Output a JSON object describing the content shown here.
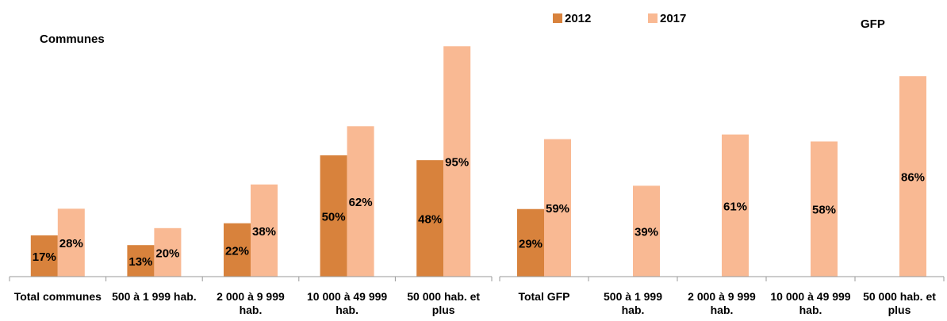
{
  "chart_data": [
    {
      "type": "bar",
      "title": "Communes",
      "categories": [
        "Total communes",
        "500 à 1 999 hab.",
        "2 000 à 9 999 hab.",
        "10 000 à 49 999 hab.",
        "50 000 hab. et plus"
      ],
      "series": [
        {
          "name": "2012",
          "color": "#d8823c",
          "values": [
            17,
            13,
            22,
            50,
            48
          ],
          "value_labels": [
            "17%",
            "13%",
            "22%",
            "50%",
            "48%"
          ]
        },
        {
          "name": "2017",
          "color": "#f9b993",
          "values": [
            28,
            20,
            38,
            62,
            95
          ],
          "value_labels": [
            "28%",
            "20%",
            "38%",
            "62%",
            "95%"
          ]
        }
      ],
      "ylim": [
        0,
        100
      ]
    },
    {
      "type": "bar",
      "title": "GFP",
      "categories": [
        "Total GFP",
        "500 à 1 999 hab.",
        "2 000 à 9 999 hab.",
        "10 000 à 49 999 hab.",
        "50 000 hab. et plus"
      ],
      "series": [
        {
          "name": "2012",
          "color": "#d8823c",
          "values": [
            29,
            null,
            null,
            null,
            null
          ],
          "value_labels": [
            "29%",
            null,
            null,
            null,
            null
          ]
        },
        {
          "name": "2017",
          "color": "#f9b993",
          "values": [
            59,
            39,
            61,
            58,
            86
          ],
          "value_labels": [
            "59%",
            "39%",
            "61%",
            "58%",
            "86%"
          ]
        }
      ],
      "ylim": [
        0,
        100
      ]
    }
  ]
}
